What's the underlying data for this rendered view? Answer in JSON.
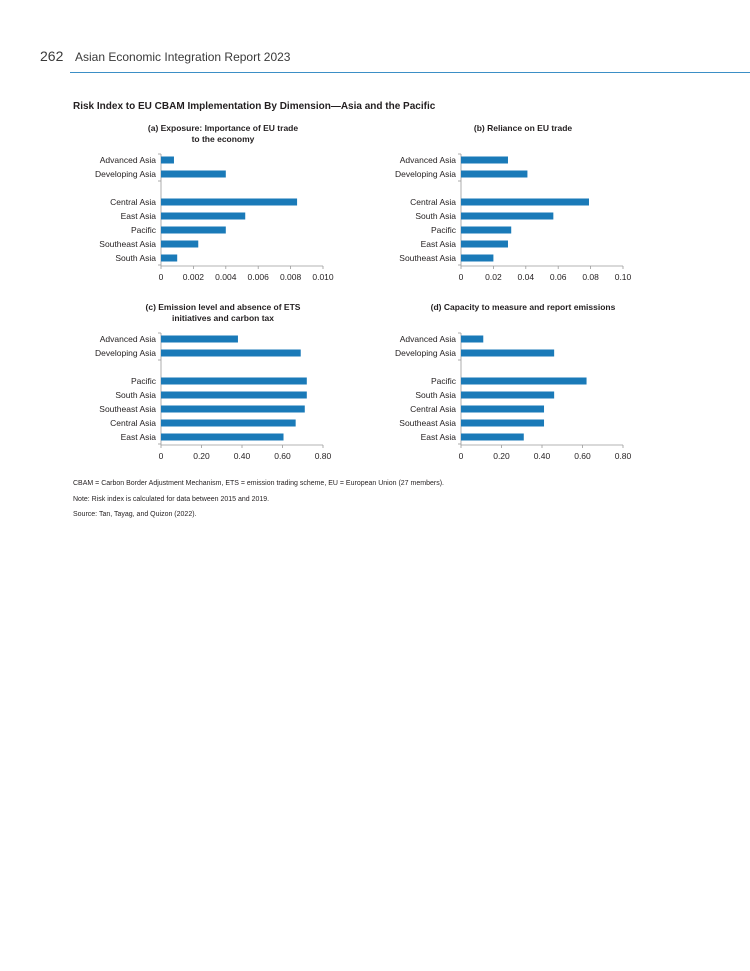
{
  "header": {
    "page_number": "262",
    "running_title": "Asian Economic Integration Report 2023"
  },
  "figure_title": "Risk Index to EU CBAM Implementation By Dimension—Asia and the Pacific",
  "chart_data": [
    {
      "type": "bar",
      "orientation": "horizontal",
      "title": "(a) Exposure: Importance of EU trade to the economy",
      "title_lines": [
        "(a) Exposure: Importance of EU trade",
        "to the economy"
      ],
      "categories": [
        "Advanced Asia",
        "Developing Asia",
        "Central Asia",
        "East Asia",
        "Pacific",
        "Southeast Asia",
        "South Asia"
      ],
      "values": [
        0.0008,
        0.004,
        0.0084,
        0.0052,
        0.004,
        0.0023,
        0.001
      ],
      "group_sizes": [
        2,
        5
      ],
      "xlim": [
        0,
        0.01
      ],
      "ticks": [
        "0",
        "0.002",
        "0.004",
        "0.006",
        "0.008",
        "0.010"
      ],
      "tick_values": [
        0,
        0.002,
        0.004,
        0.006,
        0.008,
        0.01
      ],
      "color": "#1a7ab8"
    },
    {
      "type": "bar",
      "orientation": "horizontal",
      "title": "(b) Reliance on EU trade",
      "title_lines": [
        "(b) Reliance on EU trade"
      ],
      "categories": [
        "Advanced Asia",
        "Developing Asia",
        "Central Asia",
        "South Asia",
        "Pacific",
        "East Asia",
        "Southeast Asia"
      ],
      "values": [
        0.029,
        0.041,
        0.079,
        0.057,
        0.031,
        0.029,
        0.02
      ],
      "group_sizes": [
        2,
        5
      ],
      "xlim": [
        0,
        0.1
      ],
      "ticks": [
        "0",
        "0.02",
        "0.04",
        "0.06",
        "0.08",
        "0.10"
      ],
      "tick_values": [
        0,
        0.02,
        0.04,
        0.06,
        0.08,
        0.1
      ],
      "color": "#1a7ab8"
    },
    {
      "type": "bar",
      "orientation": "horizontal",
      "title": "(c) Emission level and absence of ETS initiatives and carbon tax",
      "title_lines": [
        "(c) Emission level and absence of ETS",
        "initiatives and carbon tax"
      ],
      "categories": [
        "Advanced Asia",
        "Developing Asia",
        "Pacific",
        "South Asia",
        "Southeast Asia",
        "Central Asia",
        "East Asia"
      ],
      "values": [
        0.38,
        0.69,
        0.72,
        0.72,
        0.71,
        0.665,
        0.605
      ],
      "group_sizes": [
        2,
        5
      ],
      "xlim": [
        0,
        0.8
      ],
      "ticks": [
        "0",
        "0.20",
        "0.40",
        "0.60",
        "0.80"
      ],
      "tick_values": [
        0,
        0.2,
        0.4,
        0.6,
        0.8
      ],
      "color": "#1a7ab8"
    },
    {
      "type": "bar",
      "orientation": "horizontal",
      "title": "(d) Capacity to measure and report emissions",
      "title_lines": [
        "(d) Capacity to measure and report emissions"
      ],
      "categories": [
        "Advanced Asia",
        "Developing Asia",
        "Pacific",
        "South Asia",
        "Central Asia",
        "Southeast Asia",
        "East Asia"
      ],
      "values": [
        0.11,
        0.46,
        0.62,
        0.46,
        0.41,
        0.41,
        0.31
      ],
      "group_sizes": [
        2,
        5
      ],
      "xlim": [
        0,
        0.8
      ],
      "ticks": [
        "0",
        "0.20",
        "0.40",
        "0.60",
        "0.80"
      ],
      "tick_values": [
        0,
        0.2,
        0.4,
        0.6,
        0.8
      ],
      "color": "#1a7ab8"
    }
  ],
  "notes": {
    "abbreviations": "CBAM = Carbon Border Adjustment Mechanism, ETS = emission trading scheme, EU = European Union (27 members).",
    "note": "Note: Risk index is calculated for data between 2015 and 2019.",
    "source": "Source: Tan, Tayag, and Quizon (2022)."
  }
}
